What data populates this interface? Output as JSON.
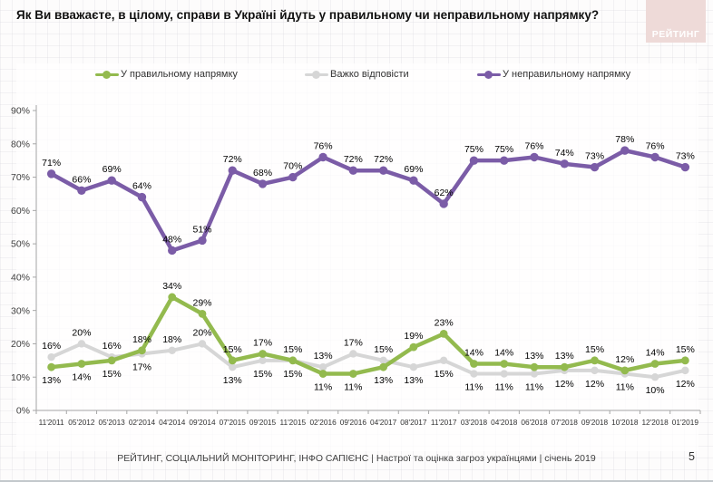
{
  "slide": {
    "title": "Як Ви вважаєте, в цілому, справи в Україні йдуть у правильному чи неправильному напрямку?",
    "logo_text": "РЕЙТИНГ",
    "footer": "РЕЙТИНГ, СОЦІАЛЬНИЙ МОНІТОРИНГ, ІНФО САПІЄНС | Настрої та оцінка загроз українцями | січень 2019",
    "page_number": "5"
  },
  "colors": {
    "green": "#93ba4e",
    "gray": "#d6d6d6",
    "purple": "#7b5ca7",
    "logo_bg": "#eedad8",
    "axis": "#a6a6a6",
    "tick_text": "#404040",
    "label_text": "#000000"
  },
  "chart_data": {
    "type": "line",
    "title": "Як Ви вважаєте, в цілому, справи в Україні йдуть у правильному чи неправильному напрямку?",
    "categories": [
      "11'2011",
      "05'2012",
      "05'2013",
      "02'2014",
      "04'2014",
      "09'2014",
      "07'2015",
      "09'2015",
      "11'2015",
      "02'2016",
      "09'2016",
      "04'2017",
      "08'2017",
      "11'2017",
      "03'2018",
      "04'2018",
      "06'2018",
      "07'2018",
      "09'2018",
      "10'2018",
      "12'2018",
      "01'2019"
    ],
    "series": [
      {
        "name": "У правильному напрямку",
        "color_key": "green",
        "values": [
          13,
          14,
          15,
          18,
          34,
          29,
          15,
          17,
          15,
          11,
          11,
          13,
          19,
          23,
          14,
          14,
          13,
          13,
          15,
          12,
          14,
          15
        ],
        "label_side": [
          "b",
          "b",
          "b",
          "a",
          "a",
          "a",
          "a",
          "a",
          "a",
          "b",
          "b",
          "b",
          "a",
          "a",
          "a",
          "a",
          "a",
          "a",
          "a",
          "a",
          "a",
          "a"
        ]
      },
      {
        "name": "Важко відповісти",
        "color_key": "gray",
        "values": [
          16,
          20,
          16,
          17,
          18,
          20,
          13,
          15,
          15,
          13,
          17,
          15,
          13,
          15,
          11,
          11,
          11,
          12,
          12,
          11,
          10,
          12
        ],
        "label_side": [
          "a",
          "a",
          "a",
          "b",
          "a",
          "a",
          "b",
          "b",
          "b",
          "a",
          "a",
          "a",
          "b",
          "b",
          "b",
          "b",
          "b",
          "b",
          "b",
          "b",
          "b",
          "b"
        ]
      },
      {
        "name": "У неправильному напрямку",
        "color_key": "purple",
        "values": [
          71,
          66,
          69,
          64,
          48,
          51,
          72,
          68,
          70,
          76,
          72,
          72,
          69,
          62,
          75,
          75,
          76,
          74,
          73,
          78,
          76,
          73
        ],
        "label_side": [
          "a",
          "a",
          "a",
          "a",
          "a",
          "a",
          "a",
          "a",
          "a",
          "a",
          "a",
          "a",
          "a",
          "a",
          "a",
          "a",
          "a",
          "a",
          "a",
          "a",
          "a",
          "a"
        ]
      }
    ],
    "ylim": [
      0,
      90
    ],
    "ytick_step": 10,
    "yticks": [
      "0%",
      "10%",
      "20%",
      "30%",
      "40%",
      "50%",
      "60%",
      "70%",
      "80%",
      "90%"
    ],
    "value_suffix": "%",
    "legend_position": "top",
    "grid": false
  }
}
